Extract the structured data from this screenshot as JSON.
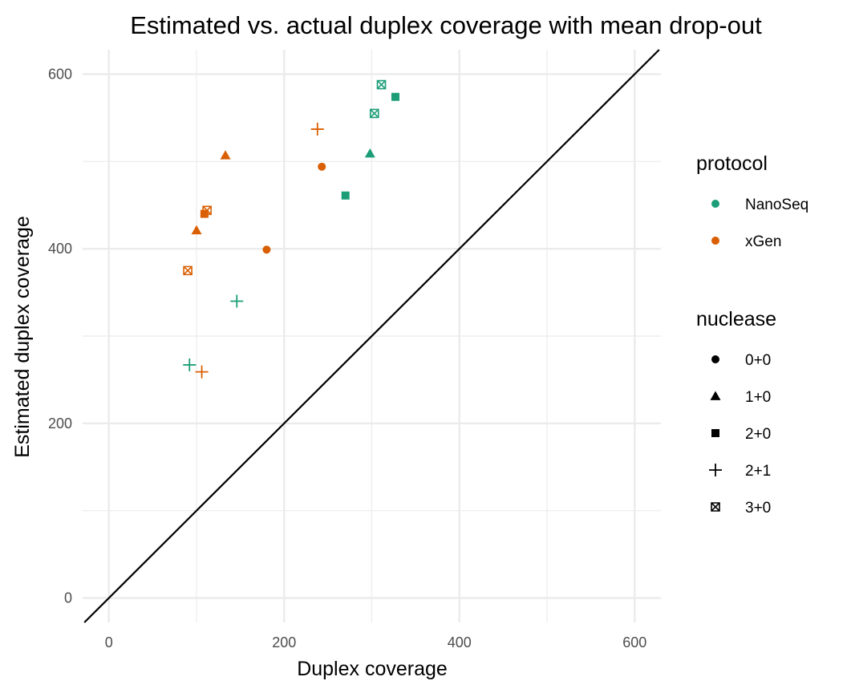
{
  "chart_data": {
    "type": "scatter",
    "title": "Estimated vs. actual duplex coverage with mean drop-out",
    "xlabel": "Duplex coverage",
    "ylabel": "Estimated duplex coverage",
    "xlim": [
      -30,
      630
    ],
    "ylim": [
      -28,
      628
    ],
    "x_ticks": [
      0,
      200,
      400,
      600
    ],
    "y_ticks": [
      0,
      200,
      400,
      600
    ],
    "grid": true,
    "reference_line": "y = x",
    "legends": [
      {
        "title": "protocol",
        "entries": [
          {
            "label": "NanoSeq",
            "color": "#1b9e77"
          },
          {
            "label": "xGen",
            "color": "#d95f02"
          }
        ]
      },
      {
        "title": "nuclease",
        "entries": [
          {
            "label": "0+0",
            "shape": "circle"
          },
          {
            "label": "1+0",
            "shape": "triangle"
          },
          {
            "label": "2+0",
            "shape": "square"
          },
          {
            "label": "2+1",
            "shape": "plus"
          },
          {
            "label": "3+0",
            "shape": "square-cross"
          }
        ]
      }
    ],
    "points": [
      {
        "protocol": "NanoSeq",
        "nuclease": "1+0",
        "x": 298,
        "y": 509
      },
      {
        "protocol": "NanoSeq",
        "nuclease": "2+0",
        "x": 270,
        "y": 461
      },
      {
        "protocol": "NanoSeq",
        "nuclease": "2+0",
        "x": 327,
        "y": 574
      },
      {
        "protocol": "NanoSeq",
        "nuclease": "2+1",
        "x": 92,
        "y": 267
      },
      {
        "protocol": "NanoSeq",
        "nuclease": "2+1",
        "x": 146,
        "y": 340
      },
      {
        "protocol": "NanoSeq",
        "nuclease": "3+0",
        "x": 303,
        "y": 555
      },
      {
        "protocol": "NanoSeq",
        "nuclease": "3+0",
        "x": 311,
        "y": 588
      },
      {
        "protocol": "xGen",
        "nuclease": "0+0",
        "x": 180,
        "y": 399
      },
      {
        "protocol": "xGen",
        "nuclease": "0+0",
        "x": 243,
        "y": 494
      },
      {
        "protocol": "xGen",
        "nuclease": "1+0",
        "x": 100,
        "y": 421
      },
      {
        "protocol": "xGen",
        "nuclease": "1+0",
        "x": 133,
        "y": 507
      },
      {
        "protocol": "xGen",
        "nuclease": "2+0",
        "x": 109,
        "y": 440
      },
      {
        "protocol": "xGen",
        "nuclease": "2+1",
        "x": 106,
        "y": 259
      },
      {
        "protocol": "xGen",
        "nuclease": "2+1",
        "x": 238,
        "y": 537
      },
      {
        "protocol": "xGen",
        "nuclease": "3+0",
        "x": 90,
        "y": 375
      },
      {
        "protocol": "xGen",
        "nuclease": "3+0",
        "x": 112,
        "y": 444
      }
    ]
  }
}
